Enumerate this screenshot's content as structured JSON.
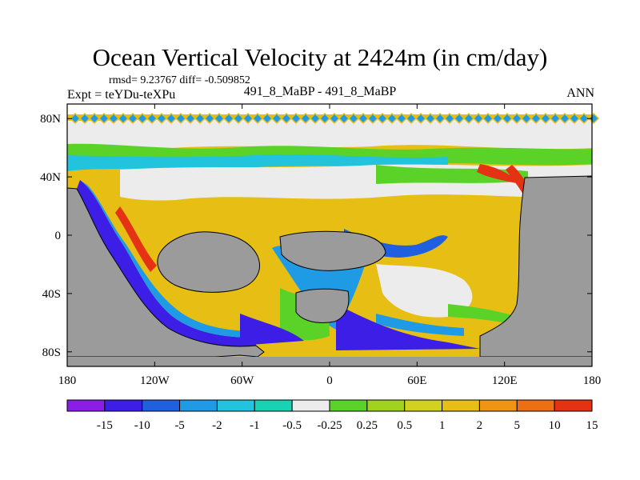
{
  "title": "Ocean Vertical Velocity at 2424m (in cm/day)",
  "stats_line": "rmsd= 9.23767 diff= -0.509852",
  "expt_line": "Expt = teYDu-teXPu",
  "subtitle": "491_8_MaBP - 491_8_MaBP",
  "season": "ANN",
  "map": {
    "projection": "cylindrical equidistant",
    "lon_range": [
      -180,
      180
    ],
    "lat_range": [
      -90,
      90
    ],
    "lon_ticks": [
      {
        "value": -180,
        "label": "180"
      },
      {
        "value": -120,
        "label": "120W"
      },
      {
        "value": -60,
        "label": "60W"
      },
      {
        "value": 0,
        "label": "0"
      },
      {
        "value": 60,
        "label": "60E"
      },
      {
        "value": 120,
        "label": "120E"
      },
      {
        "value": 180,
        "label": "180"
      }
    ],
    "lat_ticks": [
      {
        "value": 80,
        "label": "80N"
      },
      {
        "value": 40,
        "label": "40N"
      },
      {
        "value": 0,
        "label": "0"
      },
      {
        "value": -40,
        "label": "40S"
      },
      {
        "value": -80,
        "label": "80S"
      }
    ],
    "land_color": "#9b9b9b",
    "missing_color": "#ffffff"
  },
  "colorbar": {
    "colors": [
      "#8b1ee6",
      "#3c1ee6",
      "#1f5fe0",
      "#1f9be6",
      "#22c3dc",
      "#18d2b4",
      "#ececec",
      "#5ad228",
      "#a0d21e",
      "#d2d21e",
      "#e6be14",
      "#ee9614",
      "#ee6e14",
      "#e63214"
    ],
    "labels": [
      "-15",
      "-10",
      "-5",
      "-2",
      "-1",
      "-0.5",
      "-0.25",
      "0.25",
      "0.5",
      "1",
      "2",
      "5",
      "10",
      "15"
    ]
  }
}
